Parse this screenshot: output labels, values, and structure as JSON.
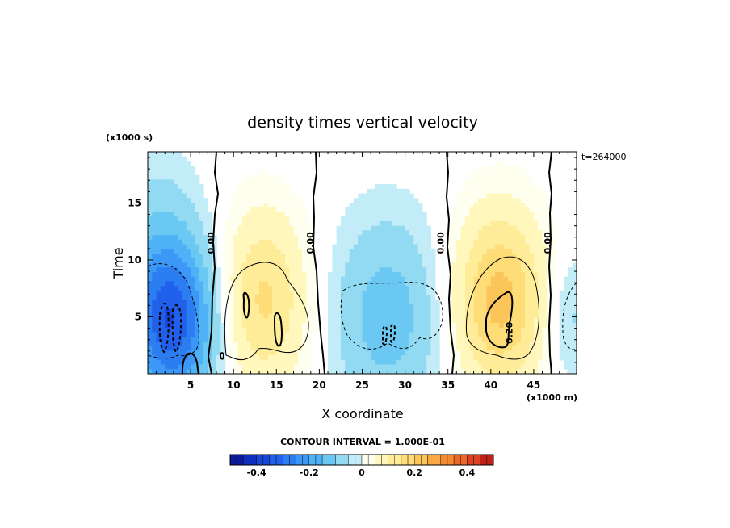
{
  "chart_data": {
    "type": "heatmap",
    "title": "density times vertical velocity",
    "xlabel": "X coordinate",
    "x_unit": "(x1000 m)",
    "ylabel": "Time",
    "y_unit": "(x1000 s)",
    "time_note": "t=264000",
    "xlim": [
      0,
      50
    ],
    "ylim": [
      0,
      19.5
    ],
    "x_ticks": [
      5,
      10,
      15,
      20,
      25,
      30,
      35,
      40,
      45
    ],
    "y_ticks": [
      5,
      10,
      15
    ],
    "contour_interval_text": "CONTOUR INTERVAL = 1.000E-01",
    "colorbar": {
      "min": -0.5,
      "max": 0.5,
      "ticks": [
        "-0.4",
        "-0.2",
        "0",
        "0.2",
        "0.4"
      ],
      "tick_values": [
        -0.4,
        -0.2,
        0,
        0.2,
        0.4
      ]
    },
    "contour_labels": [
      {
        "text": "0.00",
        "x": 7.7,
        "y": 11.5
      },
      {
        "text": "0.00",
        "x": 19.3,
        "y": 11.5
      },
      {
        "text": "0.00",
        "x": 34.5,
        "y": 11.5
      },
      {
        "text": "0.00",
        "x": 47.0,
        "y": 11.5
      },
      {
        "text": "0.20",
        "x": 42.5,
        "y": 3.6
      }
    ],
    "features": [
      {
        "kind": "negative",
        "x": 3.0,
        "y": 4.5,
        "sx": 3.5,
        "sy": 5.0,
        "peak": -0.3
      },
      {
        "kind": "negative",
        "x": 0.8,
        "y": 9.0,
        "sx": 3.5,
        "sy": 7.0,
        "peak": -0.08
      },
      {
        "kind": "positive",
        "x": 13.5,
        "y": 6.5,
        "sx": 3.6,
        "sy": 5.5,
        "peak": 0.16
      },
      {
        "kind": "negative",
        "x": 28.0,
        "y": 5.0,
        "sx": 4.5,
        "sy": 6.0,
        "peak": -0.13
      },
      {
        "kind": "positive",
        "x": 41.0,
        "y": 6.5,
        "sx": 3.8,
        "sy": 5.5,
        "peak": 0.22
      },
      {
        "kind": "negative",
        "x": 49.0,
        "y": 5.0,
        "sx": 2.0,
        "sy": 4.0,
        "peak": -0.07
      }
    ]
  }
}
